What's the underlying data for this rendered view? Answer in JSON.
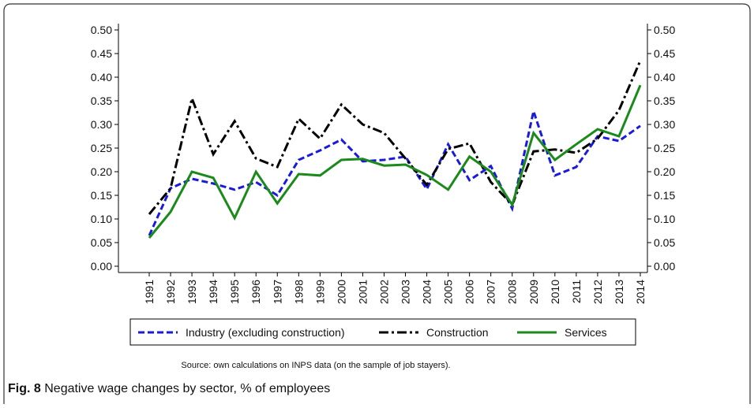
{
  "chart_data": {
    "type": "line",
    "categories": [
      "1991",
      "1992",
      "1993",
      "1994",
      "1995",
      "1996",
      "1997",
      "1998",
      "1999",
      "2000",
      "2001",
      "2002",
      "2003",
      "2004",
      "2005",
      "2006",
      "2007",
      "2008",
      "2009",
      "2010",
      "2011",
      "2012",
      "2013",
      "2014"
    ],
    "series": [
      {
        "name": "Industry (excluding construction)",
        "color": "#1a1adc",
        "dash": "dashed",
        "values": [
          0.065,
          0.165,
          0.185,
          0.175,
          0.162,
          0.178,
          0.15,
          0.225,
          0.245,
          0.268,
          0.222,
          0.225,
          0.232,
          0.163,
          0.258,
          0.182,
          0.212,
          0.122,
          0.328,
          0.192,
          0.21,
          0.275,
          0.265,
          0.297
        ]
      },
      {
        "name": "Construction",
        "color": "#000000",
        "dash": "dashdot",
        "values": [
          0.11,
          0.165,
          0.355,
          0.237,
          0.307,
          0.228,
          0.21,
          0.312,
          0.27,
          0.342,
          0.3,
          0.282,
          0.228,
          0.172,
          0.248,
          0.26,
          0.178,
          0.13,
          0.243,
          0.247,
          0.24,
          0.27,
          0.33,
          0.435
        ]
      },
      {
        "name": "Services",
        "color": "#1a8a1a",
        "dash": "solid",
        "values": [
          0.06,
          0.115,
          0.2,
          0.187,
          0.102,
          0.2,
          0.133,
          0.195,
          0.192,
          0.225,
          0.227,
          0.213,
          0.215,
          0.193,
          0.162,
          0.232,
          0.2,
          0.13,
          0.282,
          0.225,
          0.258,
          0.29,
          0.275,
          0.383
        ]
      }
    ],
    "ylim": [
      0,
      0.5
    ],
    "yticks": [
      {
        "value": 0,
        "label": "0.00"
      },
      {
        "value": 0.05,
        "label": "0.05"
      },
      {
        "value": 0.1,
        "label": "0.10"
      },
      {
        "value": 0.15,
        "label": "0.15"
      },
      {
        "value": 0.2,
        "label": "0.20"
      },
      {
        "value": 0.25,
        "label": "0.25"
      },
      {
        "value": 0.3,
        "label": "0.30"
      },
      {
        "value": 0.35,
        "label": "0.35"
      },
      {
        "value": 0.4,
        "label": "0.40"
      },
      {
        "value": 0.45,
        "label": "0.45"
      },
      {
        "value": 0.5,
        "label": "0.50"
      }
    ],
    "y2lim": [
      0,
      0.5
    ],
    "y2ticks": [
      {
        "value": 0,
        "label": "0.00"
      },
      {
        "value": 0.05,
        "label": "0.05"
      },
      {
        "value": 0.1,
        "label": "0.10"
      },
      {
        "value": 0.15,
        "label": "0.15"
      },
      {
        "value": 0.2,
        "label": "0.20"
      },
      {
        "value": 0.25,
        "label": "0.25"
      },
      {
        "value": 0.3,
        "label": "0.30"
      },
      {
        "value": 0.35,
        "label": "0.35"
      },
      {
        "value": 0.4,
        "label": "0.40"
      },
      {
        "value": 0.45,
        "label": "0.45"
      },
      {
        "value": 0.5,
        "label": "0.50"
      }
    ],
    "note": "Source: own calculations on INPS data (on the sample of job stayers)."
  },
  "caption": {
    "label": "Fig. 8",
    "text": "Negative wage changes by sector, % of employees"
  }
}
